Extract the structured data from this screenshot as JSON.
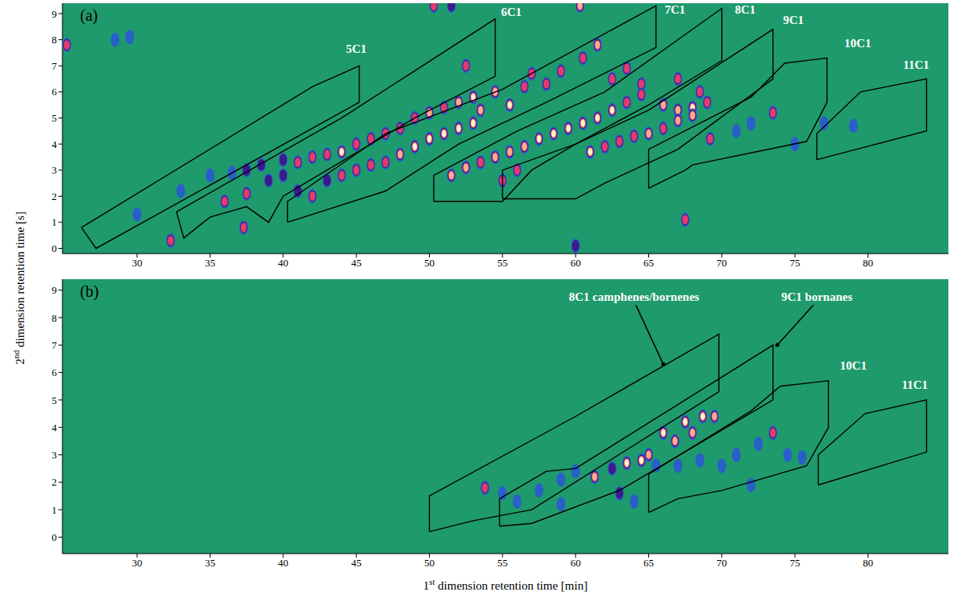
{
  "chart_data": [
    {
      "type": "scatter",
      "panel": "(a)",
      "y_label": "2nd dimension retention time [s]",
      "xlim": [
        24.9,
        85.5
      ],
      "ylim": [
        -0.2,
        9.4
      ],
      "xticks": [
        30,
        35,
        40,
        45,
        50,
        55,
        60,
        65,
        70,
        75,
        80
      ],
      "yticks": [
        0,
        1,
        2,
        3,
        4,
        5,
        6,
        7,
        8,
        9
      ],
      "regions": [
        {
          "label": "5C1",
          "label_at": [
            45,
            7.5
          ],
          "vertices": [
            [
              26.2,
              0.8
            ],
            [
              42,
              6.2
            ],
            [
              45.2,
              7.0
            ],
            [
              45.2,
              5.6
            ],
            [
              27.2,
              0.0
            ]
          ]
        },
        {
          "label": "6C1",
          "label_at": [
            55.6,
            8.9
          ],
          "vertices": [
            [
              32.7,
              1.4
            ],
            [
              44,
              5.0
            ],
            [
              54.5,
              8.8
            ],
            [
              54.5,
              6.6
            ],
            [
              49,
              5.0
            ],
            [
              40,
              2.0
            ],
            [
              39,
              1.0
            ],
            [
              37.5,
              1.6
            ],
            [
              35,
              1.2
            ],
            [
              33.2,
              0.4
            ]
          ]
        },
        {
          "label": "7C1",
          "label_at": [
            66.8,
            9.0
          ],
          "vertices": [
            [
              40.3,
              1.0
            ],
            [
              40.3,
              1.8
            ],
            [
              47,
              4.4
            ],
            [
              55,
              6.1
            ],
            [
              65.5,
              9.3
            ],
            [
              65.5,
              7.7
            ],
            [
              58,
              5.6
            ],
            [
              52,
              4.0
            ],
            [
              47,
              2.2
            ]
          ]
        },
        {
          "label": "8C1",
          "label_at": [
            71.6,
            9.0
          ],
          "vertices": [
            [
              50.3,
              1.8
            ],
            [
              50.3,
              2.8
            ],
            [
              56,
              4.5
            ],
            [
              62,
              6.0
            ],
            [
              70,
              9.2
            ],
            [
              70,
              7.2
            ],
            [
              65,
              5.5
            ],
            [
              60,
              4.0
            ],
            [
              57,
              3.0
            ],
            [
              55,
              1.8
            ]
          ]
        },
        {
          "label": "9C1",
          "label_at": [
            74.9,
            8.6
          ],
          "vertices": [
            [
              55,
              1.9
            ],
            [
              55,
              3.0
            ],
            [
              60,
              4.0
            ],
            [
              65,
              5.3
            ],
            [
              73.5,
              8.4
            ],
            [
              73.5,
              6.5
            ],
            [
              67,
              3.8
            ],
            [
              62,
              2.5
            ],
            [
              60,
              1.9
            ]
          ]
        },
        {
          "label": "10C1",
          "label_at": [
            79.3,
            7.7
          ],
          "vertices": [
            [
              65,
              2.3
            ],
            [
              65,
              3.8
            ],
            [
              72,
              5.8
            ],
            [
              74.3,
              7.1
            ],
            [
              77.2,
              7.3
            ],
            [
              77.2,
              5.6
            ],
            [
              75.8,
              4.1
            ],
            [
              68,
              3.2
            ],
            [
              67.5,
              3.0
            ]
          ]
        },
        {
          "label": "11C1",
          "label_at": [
            83.3,
            6.9
          ],
          "vertices": [
            [
              76.5,
              3.4
            ],
            [
              76.5,
              4.4
            ],
            [
              79.5,
              6.0
            ],
            [
              84,
              6.5
            ],
            [
              84,
              4.5
            ]
          ]
        }
      ],
      "peaks": {
        "x": [
          30,
          33,
          35,
          36.5,
          37.5,
          38.5,
          40,
          41,
          42,
          43,
          44,
          45,
          46,
          47,
          48,
          49,
          50,
          51,
          52,
          53,
          54.5,
          55.5,
          52.5,
          56.5,
          57,
          58,
          59,
          60.5,
          61.5,
          62.5,
          63.5,
          64.5,
          67,
          68.5,
          50.3,
          60.3,
          51.5,
          36,
          37.5,
          39,
          40,
          41,
          42,
          43,
          44,
          45,
          46,
          47,
          48,
          49,
          50,
          51,
          52,
          53,
          53.5,
          51.5,
          52.5,
          53.5,
          54.5,
          55.5,
          56.5,
          57.5,
          58.5,
          59.5,
          60.5,
          61.5,
          62.5,
          63.5,
          64.5,
          66,
          67,
          68,
          69,
          61,
          62,
          63,
          64,
          65,
          66,
          67,
          68,
          73.5,
          69.2,
          71,
          72,
          32.3,
          37.3,
          67.5,
          60,
          28.5,
          29.5,
          25.2,
          75,
          77,
          79,
          56,
          55
        ],
        "y": [
          1.3,
          2.2,
          2.8,
          2.9,
          3.0,
          3.2,
          3.4,
          3.3,
          3.5,
          3.6,
          3.7,
          4.0,
          4.2,
          4.4,
          4.6,
          5.0,
          5.2,
          5.4,
          5.6,
          5.8,
          6.0,
          5.5,
          7.0,
          6.2,
          6.7,
          6.3,
          6.8,
          7.3,
          7.8,
          6.5,
          6.9,
          6.3,
          6.5,
          6.0,
          9.3,
          9.3,
          9.3,
          1.8,
          2.1,
          2.6,
          2.8,
          2.2,
          2.0,
          2.6,
          2.8,
          3.0,
          3.2,
          3.3,
          3.6,
          3.9,
          4.2,
          4.4,
          4.6,
          4.8,
          5.3,
          2.8,
          3.1,
          3.3,
          3.5,
          3.7,
          3.9,
          4.2,
          4.4,
          4.6,
          4.8,
          5.0,
          5.3,
          5.6,
          5.9,
          5.5,
          5.3,
          5.4,
          5.6,
          3.7,
          3.9,
          4.1,
          4.3,
          4.4,
          4.6,
          4.9,
          5.1,
          5.2,
          4.2,
          4.5,
          4.8,
          0.3,
          0.8,
          1.1,
          0.1,
          8.0,
          8.1,
          7.8,
          4.0,
          4.8,
          4.7,
          3.0,
          2.6
        ],
        "intensity": [
          0.3,
          0.3,
          0.35,
          0.4,
          0.5,
          0.5,
          0.55,
          0.7,
          0.65,
          0.75,
          0.9,
          0.7,
          0.6,
          0.7,
          0.6,
          0.7,
          0.8,
          0.7,
          0.85,
          0.9,
          0.8,
          0.9,
          0.7,
          0.7,
          0.6,
          0.7,
          0.7,
          0.75,
          0.8,
          0.7,
          0.6,
          0.6,
          0.6,
          0.7,
          0.7,
          0.8,
          0.5,
          0.6,
          0.6,
          0.55,
          0.5,
          0.5,
          0.7,
          0.55,
          0.6,
          0.6,
          0.6,
          0.75,
          0.85,
          0.9,
          0.95,
          0.95,
          1,
          1,
          0.85,
          0.85,
          0.8,
          0.75,
          0.8,
          0.85,
          0.85,
          0.95,
          0.95,
          1,
          1,
          1,
          0.9,
          0.75,
          0.7,
          0.8,
          0.85,
          0.9,
          0.75,
          0.95,
          0.7,
          0.7,
          0.75,
          0.8,
          0.75,
          0.8,
          0.8,
          0.7,
          0.6,
          0.35,
          0.35,
          0.7,
          0.6,
          0.6,
          0.5,
          0.35,
          0.3,
          0.6,
          0.35,
          0.3,
          0.3,
          0.6,
          0.6
        ]
      }
    },
    {
      "type": "scatter",
      "panel": "(b)",
      "x_label": "1st dimension retention time [min]",
      "xlim": [
        24.9,
        85.5
      ],
      "ylim": [
        -0.6,
        9.4
      ],
      "xticks": [
        30,
        35,
        40,
        45,
        50,
        55,
        60,
        65,
        70,
        75,
        80
      ],
      "yticks": [
        0,
        1,
        2,
        3,
        4,
        5,
        6,
        7,
        8,
        9
      ],
      "regions": [
        {
          "label": "8C1 camphenes/bornenes",
          "label_at": [
            64,
            8.6
          ],
          "arrow_to": [
            66,
            6.3
          ],
          "vertices": [
            [
              50,
              0.2
            ],
            [
              50,
              1.5
            ],
            [
              60,
              4.4
            ],
            [
              69.8,
              7.4
            ],
            [
              69.8,
              5.3
            ],
            [
              57,
              1.0
            ],
            [
              53,
              0.6
            ]
          ]
        },
        {
          "label": "9C1 bornanes",
          "label_at": [
            76.5,
            8.6
          ],
          "arrow_to": [
            73.8,
            7.0
          ],
          "vertices": [
            [
              54.8,
              0.4
            ],
            [
              54.8,
              1.4
            ],
            [
              58,
              2.4
            ],
            [
              60,
              2.5
            ],
            [
              73.5,
              7.0
            ],
            [
              73.5,
              5.0
            ],
            [
              63,
              1.7
            ],
            [
              57,
              0.5
            ]
          ]
        },
        {
          "label": "10C1",
          "label_at": [
            79,
            6.1
          ],
          "vertices": [
            [
              65,
              0.9
            ],
            [
              65,
              2.3
            ],
            [
              72,
              4.6
            ],
            [
              74,
              5.5
            ],
            [
              77.3,
              5.7
            ],
            [
              77.3,
              4.0
            ],
            [
              75.8,
              2.6
            ],
            [
              70,
              1.7
            ],
            [
              67,
              1.4
            ]
          ]
        },
        {
          "label": "11C1",
          "label_at": [
            83.2,
            5.4
          ],
          "vertices": [
            [
              76.6,
              1.9
            ],
            [
              76.6,
              3.0
            ],
            [
              79.8,
              4.5
            ],
            [
              84,
              5.0
            ],
            [
              84,
              3.1
            ]
          ]
        }
      ],
      "peaks": {
        "x": [
          53.8,
          55,
          56,
          57.5,
          59,
          60,
          61.3,
          62.5,
          63,
          63.5,
          64.5,
          65,
          66,
          66.8,
          67.5,
          68,
          68.7,
          69.5,
          65.5,
          67,
          68.5,
          70,
          71,
          72.5,
          73.5,
          74.5,
          75.5,
          64,
          59,
          72
        ],
        "y": [
          1.8,
          1.6,
          1.3,
          1.7,
          2.1,
          2.4,
          2.2,
          2.5,
          1.6,
          2.7,
          2.8,
          3.0,
          3.8,
          3.5,
          4.2,
          3.8,
          4.4,
          4.4,
          2.6,
          2.6,
          2.8,
          2.6,
          3.0,
          3.4,
          3.8,
          3.0,
          2.9,
          1.3,
          1.2,
          1.9
        ],
        "intensity": [
          0.65,
          0.3,
          0.3,
          0.3,
          0.3,
          0.35,
          0.8,
          0.5,
          0.5,
          0.9,
          0.95,
          0.85,
          1,
          0.8,
          0.9,
          0.85,
          0.9,
          0.85,
          0.4,
          0.35,
          0.35,
          0.4,
          0.4,
          0.35,
          0.75,
          0.3,
          0.3,
          0.3,
          0.3,
          0.3
        ]
      }
    }
  ]
}
